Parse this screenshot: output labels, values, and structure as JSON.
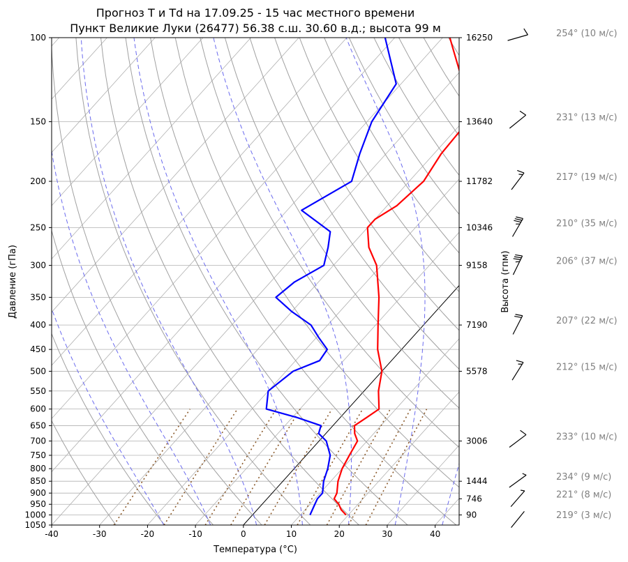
{
  "chart_data": {
    "type": "line",
    "title_line1": "Прогноз T и Td на 17.09.25 - 15 час местного времени",
    "title_line2": "Пункт Великие Луки (26477) 56.38 с.ш. 30.60 в.д.; высота 99 м",
    "xlabel": "Температура (°C)",
    "ylabel": "Давление (гПа)",
    "y2label": "Высота (гпм)",
    "xlim": [
      -40,
      45
    ],
    "ylim": [
      1050,
      100
    ],
    "y_scale": "log",
    "skew": true,
    "grid": true,
    "x_ticks": [
      -40,
      -30,
      -20,
      -10,
      0,
      10,
      20,
      30,
      40
    ],
    "y_ticks": [
      1050,
      1000,
      950,
      900,
      850,
      800,
      750,
      700,
      650,
      600,
      550,
      500,
      450,
      400,
      350,
      300,
      250,
      200,
      150,
      100
    ],
    "height_ticks": [
      {
        "p": 100,
        "label": "16250"
      },
      {
        "p": 150,
        "label": "13640"
      },
      {
        "p": 200,
        "label": "11782"
      },
      {
        "p": 250,
        "label": "10346"
      },
      {
        "p": 300,
        "label": "9158"
      },
      {
        "p": 400,
        "label": "7190"
      },
      {
        "p": 500,
        "label": "5578"
      },
      {
        "p": 700,
        "label": "3006"
      },
      {
        "p": 850,
        "label": "1444"
      },
      {
        "p": 925,
        "label": "746"
      },
      {
        "p": 1000,
        "label": "90"
      }
    ],
    "series": [
      {
        "color": "#ff0000",
        "points": [
          [
            1000,
            19.5
          ],
          [
            975,
            17.5
          ],
          [
            950,
            16.0
          ],
          [
            925,
            14.0
          ],
          [
            900,
            13.5
          ],
          [
            850,
            11.5
          ],
          [
            800,
            10.0
          ],
          [
            750,
            9.0
          ],
          [
            700,
            8.0
          ],
          [
            675,
            6.0
          ],
          [
            650,
            4.5
          ],
          [
            625,
            5.5
          ],
          [
            600,
            6.5
          ],
          [
            550,
            3.0
          ],
          [
            500,
            0.0
          ],
          [
            450,
            -5.0
          ],
          [
            400,
            -9.5
          ],
          [
            350,
            -14.5
          ],
          [
            300,
            -21.0
          ],
          [
            275,
            -26.0
          ],
          [
            250,
            -30.0
          ],
          [
            240,
            -30.0
          ],
          [
            225,
            -28.0
          ],
          [
            200,
            -27.0
          ],
          [
            175,
            -28.5
          ],
          [
            150,
            -29.0
          ],
          [
            125,
            -37.0
          ],
          [
            105,
            -46.0
          ],
          [
            100,
            -48.5
          ]
        ]
      },
      {
        "color": "#0000ff",
        "points": [
          [
            1000,
            12.0
          ],
          [
            975,
            11.5
          ],
          [
            950,
            11.0
          ],
          [
            925,
            10.5
          ],
          [
            900,
            10.5
          ],
          [
            850,
            8.5
          ],
          [
            800,
            7.0
          ],
          [
            750,
            5.0
          ],
          [
            700,
            1.5
          ],
          [
            675,
            -1.5
          ],
          [
            650,
            -2.5
          ],
          [
            625,
            -9.0
          ],
          [
            600,
            -17.0
          ],
          [
            550,
            -20.0
          ],
          [
            500,
            -18.5
          ],
          [
            475,
            -15.0
          ],
          [
            450,
            -15.5
          ],
          [
            425,
            -19.5
          ],
          [
            400,
            -23.5
          ],
          [
            375,
            -30.0
          ],
          [
            350,
            -36.0
          ],
          [
            325,
            -35.0
          ],
          [
            300,
            -32.0
          ],
          [
            275,
            -34.5
          ],
          [
            255,
            -37.0
          ],
          [
            230,
            -47.0
          ],
          [
            200,
            -42.0
          ],
          [
            175,
            -45.5
          ],
          [
            150,
            -49.0
          ],
          [
            125,
            -51.0
          ],
          [
            100,
            -62.0
          ]
        ]
      }
    ],
    "winds": [
      {
        "p": 100,
        "dir": 254,
        "speed": 10,
        "label": "254° (10 м/с)"
      },
      {
        "p": 150,
        "dir": 231,
        "speed": 13,
        "label": "231° (13 м/с)"
      },
      {
        "p": 200,
        "dir": 217,
        "speed": 19,
        "label": "217° (19 м/с)"
      },
      {
        "p": 250,
        "dir": 210,
        "speed": 35,
        "label": "210° (35 м/с)"
      },
      {
        "p": 300,
        "dir": 206,
        "speed": 37,
        "label": "206° (37 м/с)"
      },
      {
        "p": 400,
        "dir": 207,
        "speed": 22,
        "label": "207° (22 м/с)"
      },
      {
        "p": 500,
        "dir": 212,
        "speed": 15,
        "label": "212° (15 м/с)"
      },
      {
        "p": 700,
        "dir": 233,
        "speed": 10,
        "label": "233° (10 м/с)"
      },
      {
        "p": 850,
        "dir": 234,
        "speed": 9,
        "label": "234° (9 м/с)"
      },
      {
        "p": 925,
        "dir": 221,
        "speed": 8,
        "label": "221° (8 м/с)"
      },
      {
        "p": 1000,
        "dir": 219,
        "speed": 3,
        "label": "219° (3 м/с)"
      }
    ],
    "dry_adiabats_theta_c": [
      -30,
      -20,
      -10,
      0,
      10,
      20,
      30,
      40,
      50,
      60,
      70,
      80,
      90,
      100,
      110,
      120,
      130,
      140,
      150,
      160
    ],
    "moist_adiabats_t0_c": [
      -20,
      -10,
      0,
      10,
      20,
      30,
      40
    ],
    "mixing_ratios_gkg": [
      0.4,
      1,
      2,
      3,
      5,
      8,
      12,
      16,
      20
    ],
    "colors": {
      "temperature": "#ff0000",
      "dewpoint": "#0000ff",
      "dry_adiabat": "#a0a0a0",
      "moist_adiabat": "#6a6aee",
      "mixing_ratio": "#8b5a2b",
      "isotherm_zero": "#000000",
      "grid": "#b0b0b0",
      "wind_text": "#808080"
    }
  }
}
